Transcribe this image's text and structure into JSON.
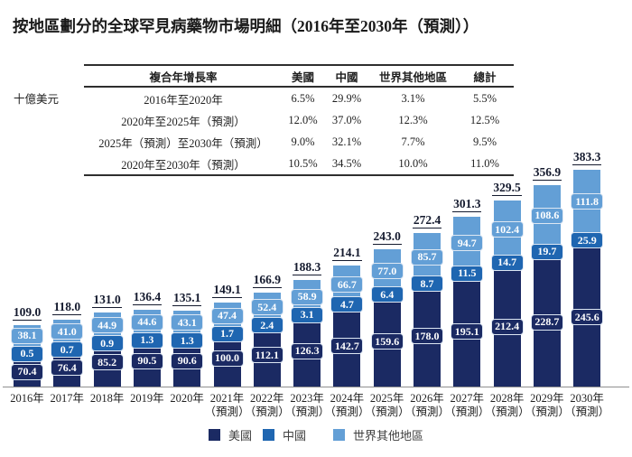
{
  "title": "按地區劃分的全球罕見病藥物市場明細（2016年至2030年（預測））",
  "unit_label": "十億美元",
  "cagr_table": {
    "columns": [
      "複合年增長率",
      "美國",
      "中國",
      "世界其他地區",
      "總計"
    ],
    "rows": [
      [
        "2016年至2020年",
        "6.5%",
        "29.9%",
        "3.1%",
        "5.5%"
      ],
      [
        "2020年至2025年（預測）",
        "12.0%",
        "37.0%",
        "12.3%",
        "12.5%"
      ],
      [
        "2025年（預測）至2030年（預測）",
        "9.0%",
        "32.1%",
        "7.7%",
        "9.5%"
      ],
      [
        "2020年至2030年（預測）",
        "10.5%",
        "34.5%",
        "10.0%",
        "11.0%"
      ]
    ]
  },
  "chart_data": {
    "type": "bar",
    "stacked": true,
    "title": "按地區劃分的全球罕見病藥物市場明細（2016年至2030年（預測））",
    "ylabel": "十億美元",
    "ylim": [
      0,
      400
    ],
    "grid": false,
    "legend_position": "bottom",
    "categories": [
      "2016年",
      "2017年",
      "2018年",
      "2019年",
      "2020年",
      "2021年",
      "2022年",
      "2023年",
      "2024年",
      "2025年",
      "2026年",
      "2027年",
      "2028年",
      "2029年",
      "2030年"
    ],
    "forecast_note": "（預測）",
    "forecast_start_index": 5,
    "series": [
      {
        "name": "美國",
        "color": "#1B2A63",
        "values": [
          70.4,
          76.4,
          85.2,
          90.5,
          90.6,
          100.0,
          112.1,
          126.3,
          142.7,
          159.6,
          178.0,
          195.1,
          212.4,
          228.7,
          245.6
        ]
      },
      {
        "name": "中國",
        "color": "#1F66B1",
        "values": [
          0.5,
          0.7,
          0.9,
          1.3,
          1.3,
          1.7,
          2.4,
          3.1,
          4.7,
          6.4,
          8.7,
          11.5,
          14.7,
          19.7,
          25.9
        ]
      },
      {
        "name": "世界其他地區",
        "color": "#639FD6",
        "values": [
          38.1,
          41.0,
          44.9,
          44.6,
          43.1,
          47.4,
          52.4,
          58.9,
          66.7,
          77.0,
          85.7,
          94.7,
          102.4,
          108.6,
          111.8
        ]
      }
    ],
    "totals": [
      109.0,
      118.0,
      131.0,
      136.4,
      135.1,
      149.1,
      166.9,
      188.3,
      214.1,
      243.0,
      272.4,
      301.3,
      329.5,
      356.9,
      383.3
    ]
  },
  "colors": {
    "axis": "#8f8f8f",
    "total_label": "#141a2e"
  }
}
